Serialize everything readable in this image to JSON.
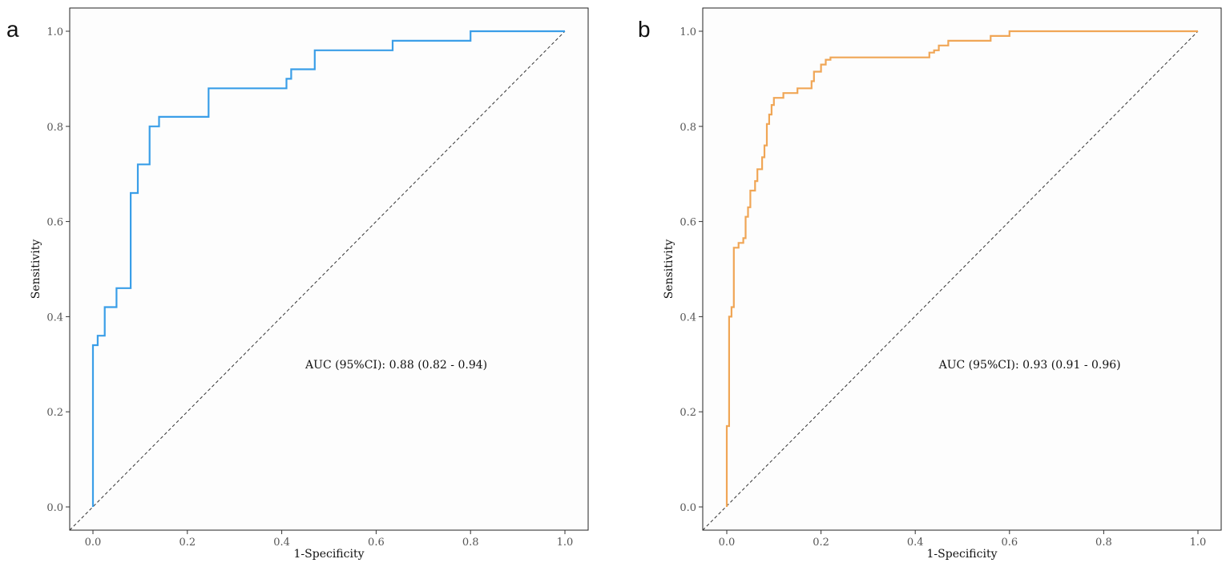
{
  "chart_data": [
    {
      "type": "line",
      "panel_label": "a",
      "xlabel": "1-Specificity",
      "ylabel": "Sensitivity",
      "xlim": [
        0,
        1
      ],
      "ylim": [
        0,
        1
      ],
      "xticks": [
        "0.0",
        "0.2",
        "0.4",
        "0.6",
        "0.8",
        "1.0"
      ],
      "yticks": [
        "0.0",
        "0.2",
        "0.4",
        "0.6",
        "0.8",
        "1.0"
      ],
      "grid": false,
      "annotation": "AUC (95%CI): 0.88 (0.82 - 0.94)",
      "color": "#3a9ee8",
      "reference_line": {
        "x": [
          0,
          1
        ],
        "y": [
          0,
          1
        ],
        "style": "dashed"
      },
      "series": [
        {
          "name": "ROC",
          "x": [
            0,
            0,
            0.01,
            0.01,
            0.025,
            0.025,
            0.05,
            0.05,
            0.08,
            0.08,
            0.095,
            0.095,
            0.12,
            0.12,
            0.14,
            0.14,
            0.245,
            0.245,
            0.41,
            0.41,
            0.42,
            0.42,
            0.47,
            0.47,
            0.635,
            0.635,
            0.8,
            0.8,
            1
          ],
          "y": [
            0,
            0.34,
            0.34,
            0.36,
            0.36,
            0.42,
            0.42,
            0.46,
            0.46,
            0.66,
            0.66,
            0.72,
            0.72,
            0.8,
            0.8,
            0.82,
            0.82,
            0.88,
            0.88,
            0.9,
            0.9,
            0.92,
            0.92,
            0.96,
            0.96,
            0.98,
            0.98,
            1,
            1
          ]
        }
      ]
    },
    {
      "type": "line",
      "panel_label": "b",
      "xlabel": "1-Specificity",
      "ylabel": "Sensitivity",
      "xlim": [
        0,
        1
      ],
      "ylim": [
        0,
        1
      ],
      "xticks": [
        "0.0",
        "0.2",
        "0.4",
        "0.6",
        "0.8",
        "1.0"
      ],
      "yticks": [
        "0.0",
        "0.2",
        "0.4",
        "0.6",
        "0.8",
        "1.0"
      ],
      "grid": false,
      "annotation": "AUC (95%CI): 0.93 (0.91 - 0.96)",
      "color": "#f0a656",
      "reference_line": {
        "x": [
          0,
          1
        ],
        "y": [
          0,
          1
        ],
        "style": "dashed"
      },
      "series": [
        {
          "name": "ROC",
          "x": [
            0,
            0,
            0.005,
            0.005,
            0.01,
            0.01,
            0.015,
            0.015,
            0.025,
            0.025,
            0.035,
            0.035,
            0.04,
            0.04,
            0.045,
            0.045,
            0.05,
            0.05,
            0.06,
            0.06,
            0.065,
            0.065,
            0.075,
            0.075,
            0.08,
            0.08,
            0.085,
            0.085,
            0.09,
            0.09,
            0.095,
            0.095,
            0.1,
            0.1,
            0.12,
            0.12,
            0.15,
            0.15,
            0.18,
            0.18,
            0.185,
            0.185,
            0.2,
            0.2,
            0.21,
            0.21,
            0.22,
            0.22,
            0.43,
            0.43,
            0.44,
            0.44,
            0.45,
            0.45,
            0.47,
            0.47,
            0.56,
            0.56,
            0.6,
            0.6,
            1
          ],
          "y": [
            0,
            0.17,
            0.17,
            0.4,
            0.4,
            0.42,
            0.42,
            0.545,
            0.545,
            0.555,
            0.555,
            0.565,
            0.565,
            0.61,
            0.61,
            0.63,
            0.63,
            0.665,
            0.665,
            0.685,
            0.685,
            0.71,
            0.71,
            0.735,
            0.735,
            0.76,
            0.76,
            0.805,
            0.805,
            0.825,
            0.825,
            0.845,
            0.845,
            0.86,
            0.86,
            0.87,
            0.87,
            0.88,
            0.88,
            0.895,
            0.895,
            0.915,
            0.915,
            0.93,
            0.93,
            0.94,
            0.94,
            0.945,
            0.945,
            0.955,
            0.955,
            0.96,
            0.96,
            0.97,
            0.97,
            0.98,
            0.98,
            0.99,
            0.99,
            1,
            1
          ]
        }
      ]
    }
  ]
}
